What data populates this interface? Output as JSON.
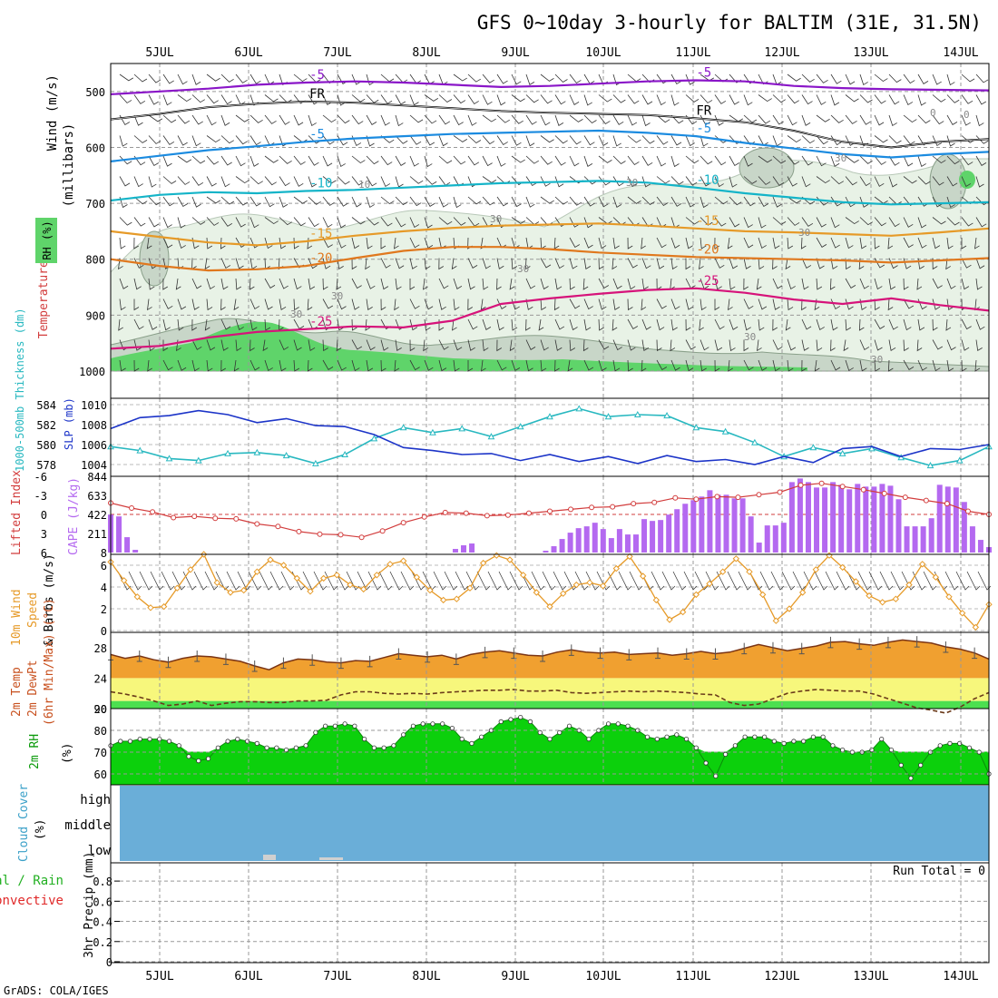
{
  "header": {
    "title": "GFS 0~10day 3-hourly for BALTIM (31E, 31.5N)",
    "footer": "GrADS: COLA/IGES"
  },
  "date_labels": [
    "5JUL",
    "6JUL",
    "7JUL",
    "8JUL",
    "9JUL",
    "10JUL",
    "11JUL",
    "12JUL",
    "13JUL",
    "14JUL"
  ],
  "colors": {
    "purple": "#8a16c8",
    "black": "#000000",
    "blue": "#1b8be0",
    "cyan": "#14b4c8",
    "orange_light": "#e69a28",
    "orange": "#e0781e",
    "magenta": "#d6137a",
    "rh_light": "#e8f2e6",
    "rh_mid": "#c8d6c8",
    "rh_green": "#5fd46a",
    "slp": "#1c34c8",
    "thickness": "#28b8c0",
    "cape": "#b469f0",
    "li": "#d23c3c",
    "wind": "#e69a28",
    "temp_fill": "#f0a030",
    "temp_fill_dark": "#d25a14",
    "temp_line": "#7a3414",
    "dew_fill": "#f7f77c",
    "dew_band": "#4ce050",
    "rh_fill": "#0cd00c",
    "rh_dark": "#08a808",
    "cloud": "#6aaed8",
    "cloud_low": "#d0d0d0"
  },
  "chart_data": [
    {
      "id": "upper-air",
      "type": "contour",
      "ylabel_parts": [
        "Wind (m/s)",
        "Temperature (°C)",
        "(millibars)",
        "RH (%)"
      ],
      "y_axis": {
        "ticks": [
          "500",
          "600",
          "700",
          "800",
          "900",
          "1000"
        ],
        "range_mb": [
          450,
          1000
        ]
      },
      "temperature_isotherms": [
        {
          "label": "-5",
          "color": "purple",
          "pressure_mb": [
            505,
            500,
            495,
            488,
            484,
            482,
            484,
            488,
            492,
            490,
            486,
            482,
            480,
            482,
            490,
            494,
            496,
            497,
            498
          ]
        },
        {
          "label": "FR",
          "color": "black",
          "pressure_mb": [
            550,
            540,
            528,
            522,
            518,
            520,
            525,
            530,
            535,
            538,
            540,
            542,
            548,
            555,
            570,
            590,
            600,
            590,
            585
          ]
        },
        {
          "label": "-5",
          "color": "blue",
          "pressure_mb": [
            625,
            615,
            605,
            598,
            590,
            584,
            580,
            576,
            574,
            572,
            570,
            574,
            580,
            592,
            602,
            612,
            618,
            612,
            608
          ]
        },
        {
          "label": "-10",
          "color": "cyan",
          "pressure_mb": [
            695,
            685,
            680,
            682,
            678,
            676,
            672,
            668,
            664,
            662,
            660,
            663,
            672,
            682,
            690,
            698,
            702,
            700,
            698
          ]
        },
        {
          "label": "-15",
          "color": "orange_light",
          "pressure_mb": [
            750,
            760,
            770,
            775,
            768,
            758,
            750,
            744,
            740,
            738,
            736,
            740,
            745,
            750,
            752,
            755,
            758,
            752,
            745
          ]
        },
        {
          "label": "-20",
          "color": "orange",
          "pressure_mb": [
            800,
            812,
            820,
            818,
            812,
            798,
            785,
            778,
            778,
            782,
            788,
            792,
            796,
            798,
            800,
            802,
            806,
            802,
            798
          ]
        },
        {
          "label": "-25",
          "color": "magenta",
          "pressure_mb": [
            960,
            955,
            940,
            930,
            925,
            920,
            922,
            910,
            880,
            870,
            862,
            855,
            852,
            860,
            872,
            880,
            870,
            882,
            892
          ]
        }
      ],
      "contour_labels": [
        "30",
        "30",
        "30",
        "30",
        "10",
        "30",
        "30",
        "0",
        "0",
        "30",
        "30",
        "30"
      ]
    },
    {
      "id": "slp-thickness",
      "type": "line",
      "ylabel_left": "1000-500mb Thickness (dm)",
      "ylabel_right": "SLP (mb)",
      "left_ticks": [
        "584",
        "582",
        "580",
        "578"
      ],
      "right_ticks": [
        "1010",
        "1008",
        "1006",
        "1004"
      ],
      "series": [
        {
          "name": "SLP",
          "values": [
            1007.6,
            1008.7,
            1008.9,
            1009.4,
            1009.0,
            1008.2,
            1008.6,
            1007.9,
            1007.8,
            1007.0,
            1005.7,
            1005.4,
            1005.0,
            1005.1,
            1004.4,
            1005.0,
            1004.3,
            1004.8,
            1004.1,
            1004.9,
            1004.3,
            1004.5,
            1004.0,
            1004.8,
            1004.2,
            1005.6,
            1005.8,
            1004.8,
            1005.6,
            1005.5,
            1006.0
          ]
        },
        {
          "name": "Thickness",
          "values": [
            579.8,
            579.4,
            578.6,
            578.4,
            579.1,
            579.2,
            578.9,
            578.1,
            579.0,
            580.6,
            581.7,
            581.2,
            581.6,
            580.8,
            581.8,
            582.8,
            583.6,
            582.8,
            583.0,
            582.9,
            581.7,
            581.3,
            580.2,
            578.8,
            579.7,
            579.1,
            579.6,
            578.7,
            577.9,
            578.4,
            579.8
          ]
        }
      ]
    },
    {
      "id": "cape-li",
      "type": "bar",
      "ylabel_left": "Lifted Index",
      "ylabel_right": "CAPE (J/kg)",
      "left_ticks": [
        "-6",
        "-3",
        "0",
        "3",
        "6"
      ],
      "right_ticks": [
        "844",
        "633",
        "422",
        "211",
        "8"
      ],
      "cape": [
        420,
        400,
        170,
        30,
        0,
        0,
        0,
        0,
        0,
        0,
        0,
        0,
        0,
        0,
        0,
        0,
        0,
        0,
        0,
        0,
        0,
        0,
        0,
        0,
        0,
        0,
        0,
        0,
        0,
        0,
        0,
        0,
        0,
        0,
        0,
        0,
        0,
        0,
        0,
        0,
        0,
        0,
        40,
        80,
        100,
        0,
        0,
        0,
        0,
        0,
        0,
        0,
        0,
        20,
        70,
        150,
        220,
        270,
        290,
        330,
        260,
        160,
        260,
        200,
        200,
        370,
        350,
        360,
        420,
        480,
        540,
        580,
        620,
        690,
        640,
        640,
        600,
        600,
        400,
        110,
        300,
        300,
        330,
        780,
        820,
        780,
        720,
        720,
        780,
        750,
        700,
        760,
        730,
        730,
        760,
        740,
        590,
        290,
        290,
        290,
        380,
        750,
        730,
        720,
        560,
        290,
        140,
        60
      ],
      "lifted_index": [
        -1.8,
        -1.0,
        -0.4,
        0.5,
        0.3,
        0.6,
        0.7,
        1.5,
        1.9,
        2.7,
        3.1,
        3.2,
        3.6,
        2.6,
        1.3,
        0.4,
        -0.3,
        -0.2,
        0.2,
        0.1,
        -0.2,
        -0.5,
        -0.8,
        -1.1,
        -1.2,
        -1.7,
        -1.9,
        -2.6,
        -2.4,
        -2.8,
        -2.7,
        -3.1,
        -3.5,
        -4.6,
        -4.9,
        -4.4,
        -3.9,
        -3.3,
        -2.7,
        -2.2,
        -1.7,
        -0.5,
        0.0
      ],
      "reference_line": 0
    },
    {
      "id": "wind-10m",
      "type": "line",
      "ylabel_parts": [
        "10m Wind",
        "Speed",
        "& Barbs (m/s)"
      ],
      "ticks": [
        "6",
        "4",
        "2",
        "0"
      ],
      "values": [
        6.3,
        4.6,
        3.1,
        2.1,
        2.2,
        3.9,
        5.6,
        7.0,
        4.4,
        3.5,
        3.7,
        5.4,
        6.5,
        6.0,
        4.8,
        3.6,
        4.8,
        5.1,
        4.2,
        3.8,
        5.1,
        6.1,
        6.4,
        4.9,
        3.7,
        2.8,
        2.9,
        3.9,
        6.2,
        6.9,
        6.5,
        5.1,
        3.5,
        2.2,
        3.4,
        4.2,
        4.4,
        4.1,
        5.7,
        6.8,
        5.0,
        2.8,
        1.0,
        1.7,
        3.3,
        4.3,
        5.4,
        6.6,
        5.4,
        3.3,
        0.9,
        2.0,
        3.5,
        5.6,
        6.9,
        5.8,
        4.5,
        3.2,
        2.6,
        2.9,
        4.2,
        6.1,
        4.9,
        3.1,
        1.6,
        0.3,
        2.4
      ]
    },
    {
      "id": "temperature",
      "type": "area",
      "ylabel_parts": [
        "2m Temp",
        "2m DewPt",
        "(6hr Min/Max) (°C)"
      ],
      "ticks": [
        "28",
        "24",
        "20"
      ],
      "temp": [
        27.1,
        26.6,
        26.9,
        26.4,
        26.1,
        26.6,
        26.9,
        26.8,
        26.5,
        26.2,
        25.6,
        25.1,
        26.0,
        26.5,
        26.4,
        26.1,
        26.0,
        26.3,
        26.2,
        26.7,
        27.2,
        27.0,
        26.8,
        27.0,
        26.5,
        27.1,
        27.4,
        27.6,
        27.3,
        27.0,
        26.9,
        27.4,
        27.7,
        27.4,
        27.3,
        27.4,
        27.1,
        27.2,
        27.3,
        27.0,
        27.2,
        27.5,
        27.2,
        27.4,
        27.9,
        28.4,
        28.0,
        27.6,
        27.9,
        28.2,
        28.7,
        28.8,
        28.5,
        28.3,
        28.7,
        29.0,
        28.8,
        28.6,
        28.1,
        27.8,
        27.3,
        26.5
      ],
      "dewpoint": [
        22.2,
        21.9,
        21.5,
        21.0,
        20.4,
        20.6,
        21.0,
        20.4,
        20.7,
        20.9,
        20.9,
        20.8,
        20.8,
        21.0,
        21.0,
        21.1,
        21.8,
        22.2,
        22.2,
        22.0,
        21.9,
        22.0,
        21.9,
        22.1,
        22.2,
        22.3,
        22.4,
        22.4,
        22.5,
        22.3,
        22.3,
        22.4,
        22.1,
        22.0,
        22.1,
        22.2,
        22.3,
        22.2,
        22.3,
        22.2,
        22.1,
        21.9,
        21.8,
        20.8,
        20.4,
        20.6,
        21.3,
        22.0,
        22.3,
        22.5,
        22.4,
        22.3,
        22.3,
        21.9,
        21.3,
        20.7,
        20.1,
        19.8,
        19.4,
        20.2,
        21.3,
        22.1
      ]
    },
    {
      "id": "rh-2m",
      "type": "area",
      "ylabel_parts": [
        "2m RH",
        "(%)"
      ],
      "ticks": [
        "90",
        "80",
        "70",
        "60"
      ],
      "values": [
        73,
        75,
        75,
        76,
        76,
        76,
        75,
        73,
        68,
        66,
        67,
        72,
        75,
        76,
        75,
        74,
        72,
        72,
        71,
        72,
        73,
        79,
        82,
        82,
        83,
        82,
        76,
        72,
        72,
        73,
        78,
        82,
        83,
        83,
        83,
        81,
        76,
        74,
        77,
        80,
        84,
        85,
        86,
        84,
        79,
        76,
        79,
        82,
        80,
        76,
        80,
        83,
        83,
        82,
        80,
        77,
        76,
        77,
        78,
        76,
        72,
        65,
        59,
        69,
        73,
        77,
        77,
        77,
        75,
        74,
        75,
        75,
        77,
        77,
        73,
        71,
        70,
        70,
        71,
        76,
        71,
        64,
        58,
        64,
        70,
        73,
        74,
        74,
        72,
        70,
        60
      ]
    },
    {
      "id": "cloud-cover",
      "type": "area",
      "ylabel_parts": [
        "Cloud Cover",
        "(%)"
      ],
      "levels": [
        "high",
        "middle",
        "low"
      ],
      "high_pct": 100,
      "low_pct": 0
    },
    {
      "id": "precip",
      "type": "bar",
      "ylabel_parts": [
        "Total / Rain",
        "Convective",
        "3hr Precip (mm)"
      ],
      "ticks": [
        "0.8",
        "0.6",
        "0.4",
        "0.2",
        "0"
      ],
      "run_total": "Run Total = 0",
      "values": []
    }
  ]
}
